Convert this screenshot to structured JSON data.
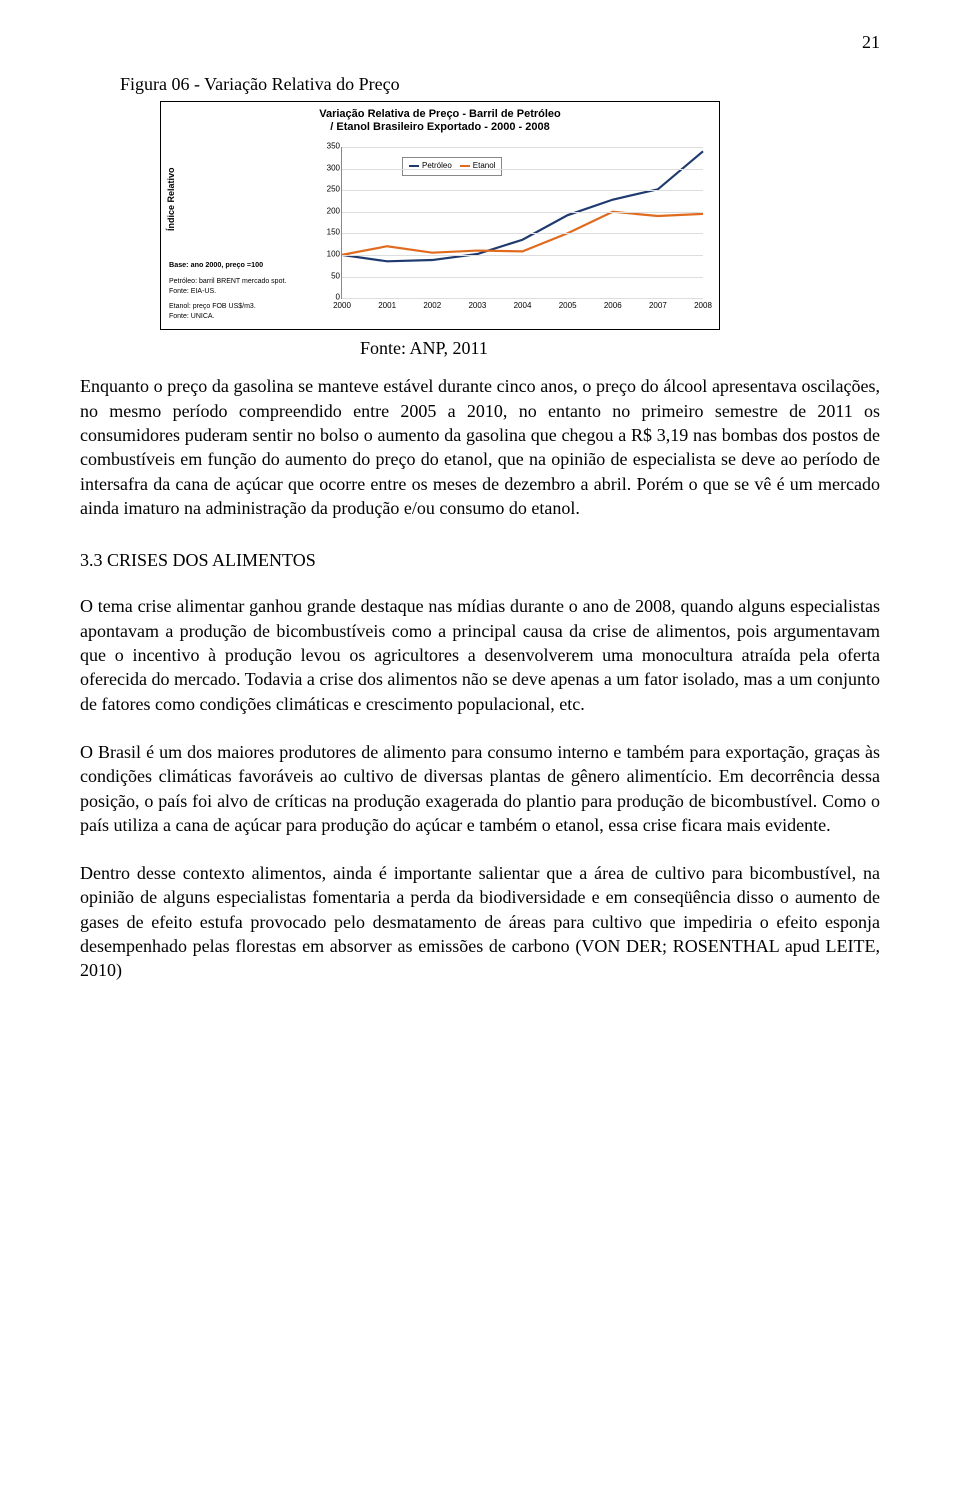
{
  "page_number": "21",
  "figure_label": "Figura 06 - Variação Relativa do Preço",
  "chart": {
    "type": "line",
    "title_line1": "Variação Relativa de Preço - Barril de Petróleo",
    "title_line2": "/ Etanol Brasileiro Exportado -  2000 - 2008",
    "ylabel": "Índice Relativo",
    "base_note": "Base: ano 2000, preço =100",
    "notes": [
      "Petróleo: barril BRENT mercado spot.",
      "Fonte: EIA-US.",
      "",
      "Etanol: preço FOB US$/m3.",
      "Fonte: UNICA."
    ],
    "yticks": [
      0,
      50,
      100,
      150,
      200,
      250,
      300,
      350
    ],
    "ylim": [
      0,
      350
    ],
    "xcategories": [
      "2000",
      "2001",
      "2002",
      "2003",
      "2004",
      "2005",
      "2006",
      "2007",
      "2008"
    ],
    "series": [
      {
        "name": "Petróleo",
        "color": "#1f3a6e",
        "values": [
          100,
          85,
          88,
          102,
          135,
          192,
          228,
          252,
          340
        ]
      },
      {
        "name": "Etanol",
        "color": "#e06b1f",
        "values": [
          100,
          120,
          105,
          110,
          108,
          150,
          200,
          190,
          195
        ]
      }
    ],
    "grid_color": "#dddddd",
    "axis_color": "#888888",
    "line_width": 2.2,
    "legend_pos": "top-left",
    "background": "#ffffff"
  },
  "chart_caption": "Fonte: ANP, 2011",
  "para1": "Enquanto o preço da gasolina se manteve estável durante cinco anos, o preço do álcool apresentava oscilações, no mesmo período compreendido entre 2005 a 2010, no entanto no primeiro semestre de 2011 os consumidores puderam sentir no bolso o aumento da gasolina que chegou a R$ 3,19 nas bombas dos postos de combustíveis em função do aumento do preço do etanol, que na opinião de especialista se deve ao período de intersafra da cana de açúcar que ocorre entre os  meses  de dezembro a abril. Porém o que se vê é um mercado ainda imaturo na administração da produção e/ou consumo do etanol.",
  "section_heading": "3.3 CRISES DOS ALIMENTOS",
  "para2": "O tema crise alimentar ganhou grande destaque nas mídias durante o ano de 2008, quando alguns especialistas apontavam a produção de bicombustíveis como a principal causa da crise de alimentos, pois argumentavam que o incentivo à produção levou os agricultores a desenvolverem uma monocultura atraída pela oferta oferecida do mercado. Todavia a crise dos alimentos não se deve apenas a um fator isolado, mas a um conjunto de fatores como condições climáticas e crescimento populacional, etc.",
  "para3": "O Brasil é um dos maiores produtores de alimento para consumo interno e também para exportação, graças às condições climáticas favoráveis ao cultivo de diversas plantas de gênero alimentício. Em decorrência dessa posição, o país foi alvo de críticas na produção exagerada do plantio para produção de bicombustível. Como o país utiliza a cana de açúcar para produção do açúcar e também o etanol, essa crise ficara mais evidente.",
  "para4": "Dentro desse contexto alimentos, ainda é importante salientar que a área de cultivo para bicombustível, na opinião de alguns especialistas fomentaria a perda da biodiversidade e em conseqüência disso o aumento de gases de efeito estufa provocado pelo desmatamento de áreas para cultivo que impediria o efeito esponja desempenhado pelas florestas em absorver as emissões de carbono (VON DER; ROSENTHAL apud LEITE, 2010)"
}
